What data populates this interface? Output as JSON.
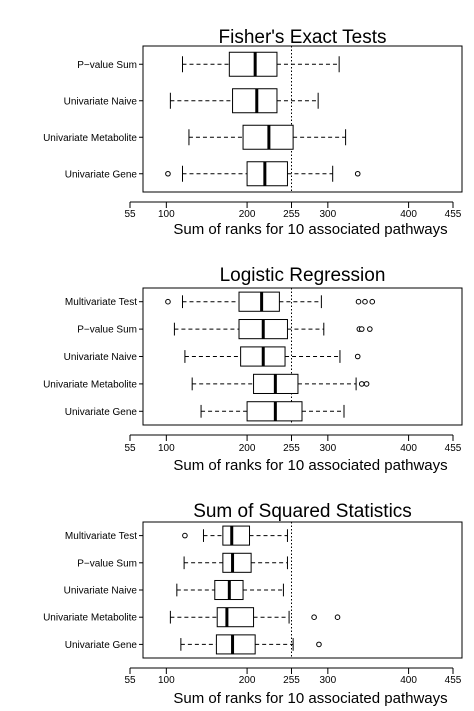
{
  "chart_data": [
    {
      "type": "boxplot",
      "title": "Fisher's Exact Tests",
      "xlabel": "Sum of ranks for 10 associated pathways",
      "xlim": [
        55,
        455
      ],
      "x_ticks": [
        55,
        100,
        200,
        255,
        300,
        400,
        455
      ],
      "reference_line": 255,
      "grid": false,
      "categories": [
        "P−value Sum",
        "Univariate Naive",
        "Univariate Metabolite",
        "Univariate Gene"
      ],
      "boxes": [
        {
          "whisker_low": 120,
          "q1": 178,
          "median": 210,
          "q3": 237,
          "whisker_high": 314,
          "outliers": []
        },
        {
          "whisker_low": 105,
          "q1": 182,
          "median": 212,
          "q3": 237,
          "whisker_high": 288,
          "outliers": []
        },
        {
          "whisker_low": 128,
          "q1": 195,
          "median": 227,
          "q3": 257,
          "whisker_high": 322,
          "outliers": []
        },
        {
          "whisker_low": 120,
          "q1": 200,
          "median": 222,
          "q3": 250,
          "whisker_high": 306,
          "outliers": [
            102,
            337
          ]
        }
      ]
    },
    {
      "type": "boxplot",
      "title": "Logistic Regression",
      "xlabel": "Sum of ranks for 10 associated pathways",
      "xlim": [
        55,
        455
      ],
      "x_ticks": [
        55,
        100,
        200,
        255,
        300,
        400,
        455
      ],
      "reference_line": 255,
      "grid": false,
      "categories": [
        "Multivariate Test",
        "P−value Sum",
        "Univariate Naive",
        "Univariate Metabolite",
        "Univariate Gene"
      ],
      "boxes": [
        {
          "whisker_low": 120,
          "q1": 190,
          "median": 218,
          "q3": 240,
          "whisker_high": 292,
          "outliers": [
            102,
            338,
            346,
            355
          ]
        },
        {
          "whisker_low": 110,
          "q1": 190,
          "median": 220,
          "q3": 250,
          "whisker_high": 295,
          "outliers": [
            339,
            342,
            352
          ]
        },
        {
          "whisker_low": 123,
          "q1": 192,
          "median": 220,
          "q3": 247,
          "whisker_high": 315,
          "outliers": [
            337
          ]
        },
        {
          "whisker_low": 132,
          "q1": 208,
          "median": 235,
          "q3": 263,
          "whisker_high": 335,
          "outliers": [
            342,
            348
          ]
        },
        {
          "whisker_low": 143,
          "q1": 200,
          "median": 235,
          "q3": 268,
          "whisker_high": 320,
          "outliers": []
        }
      ]
    },
    {
      "type": "boxplot",
      "title": "Sum of Squared Statistics",
      "xlabel": "Sum of ranks for 10 associated pathways",
      "xlim": [
        55,
        455
      ],
      "x_ticks": [
        55,
        100,
        200,
        255,
        300,
        400,
        455
      ],
      "reference_line": 255,
      "grid": false,
      "categories": [
        "Multivariate Test",
        "P−value Sum",
        "Univariate Naive",
        "Univariate Metabolite",
        "Univariate Gene"
      ],
      "boxes": [
        {
          "whisker_low": 146,
          "q1": 170,
          "median": 181,
          "q3": 203,
          "whisker_high": 250,
          "outliers": [
            123
          ]
        },
        {
          "whisker_low": 122,
          "q1": 170,
          "median": 182,
          "q3": 205,
          "whisker_high": 250,
          "outliers": []
        },
        {
          "whisker_low": 113,
          "q1": 160,
          "median": 178,
          "q3": 195,
          "whisker_high": 245,
          "outliers": []
        },
        {
          "whisker_low": 105,
          "q1": 163,
          "median": 175,
          "q3": 208,
          "whisker_high": 252,
          "outliers": [
            283,
            312
          ]
        },
        {
          "whisker_low": 118,
          "q1": 162,
          "median": 182,
          "q3": 210,
          "whisker_high": 257,
          "outliers": [
            289
          ]
        }
      ]
    }
  ]
}
